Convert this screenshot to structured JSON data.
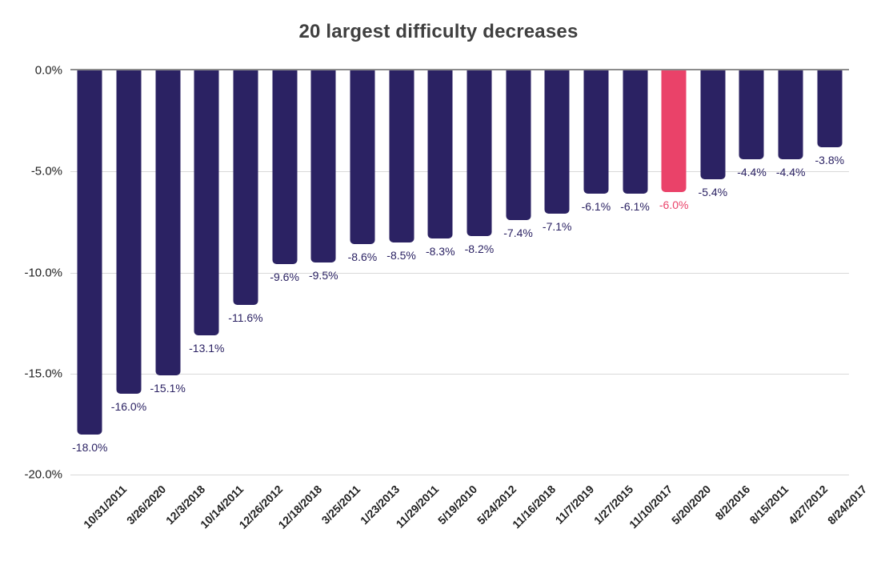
{
  "title": "20 largest difficulty decreases",
  "colors": {
    "bar": "#2b2263",
    "highlight": "#ea4269",
    "gridline": "#d9d9d9",
    "zero_line": "#8c8c8c",
    "title_text": "#3f3f3f",
    "axis_text": "#212121"
  },
  "chart_data": {
    "type": "bar",
    "title": "20 largest difficulty decreases",
    "xlabel": "",
    "ylabel": "",
    "ylim": [
      -20,
      0
    ],
    "grid": true,
    "legend": false,
    "highlight_category": "5/20/2020",
    "y_ticks": [
      {
        "label": "0.0%",
        "value": 0
      },
      {
        "label": "-5.0%",
        "value": -5
      },
      {
        "label": "-10.0%",
        "value": -10
      },
      {
        "label": "-15.0%",
        "value": -15
      },
      {
        "label": "-20.0%",
        "value": -20
      }
    ],
    "points": [
      {
        "category": "10/31/2011",
        "value": -18.0,
        "label": "-18.0%",
        "highlighted": false
      },
      {
        "category": "3/26/2020",
        "value": -16.0,
        "label": "-16.0%",
        "highlighted": false
      },
      {
        "category": "12/3/2018",
        "value": -15.1,
        "label": "-15.1%",
        "highlighted": false
      },
      {
        "category": "10/14/2011",
        "value": -13.1,
        "label": "-13.1%",
        "highlighted": false
      },
      {
        "category": "12/26/2012",
        "value": -11.6,
        "label": "-11.6%",
        "highlighted": false
      },
      {
        "category": "12/18/2018",
        "value": -9.6,
        "label": "-9.6%",
        "highlighted": false
      },
      {
        "category": "3/25/2011",
        "value": -9.5,
        "label": "-9.5%",
        "highlighted": false
      },
      {
        "category": "1/23/2013",
        "value": -8.6,
        "label": "-8.6%",
        "highlighted": false
      },
      {
        "category": "11/29/2011",
        "value": -8.5,
        "label": "-8.5%",
        "highlighted": false
      },
      {
        "category": "5/19/2010",
        "value": -8.3,
        "label": "-8.3%",
        "highlighted": false
      },
      {
        "category": "5/24/2012",
        "value": -8.2,
        "label": "-8.2%",
        "highlighted": false
      },
      {
        "category": "11/16/2018",
        "value": -7.4,
        "label": "-7.4%",
        "highlighted": false
      },
      {
        "category": "11/7/2019",
        "value": -7.1,
        "label": "-7.1%",
        "highlighted": false
      },
      {
        "category": "1/27/2015",
        "value": -6.1,
        "label": "-6.1%",
        "highlighted": false
      },
      {
        "category": "11/10/2017",
        "value": -6.1,
        "label": "-6.1%",
        "highlighted": false
      },
      {
        "category": "5/20/2020",
        "value": -6.0,
        "label": "-6.0%",
        "highlighted": true
      },
      {
        "category": "8/2/2016",
        "value": -5.4,
        "label": "-5.4%",
        "highlighted": false
      },
      {
        "category": "8/15/2011",
        "value": -4.4,
        "label": "-4.4%",
        "highlighted": false
      },
      {
        "category": "4/27/2012",
        "value": -4.4,
        "label": "-4.4%",
        "highlighted": false
      },
      {
        "category": "8/24/2017",
        "value": -3.8,
        "label": "-3.8%",
        "highlighted": false
      }
    ]
  }
}
